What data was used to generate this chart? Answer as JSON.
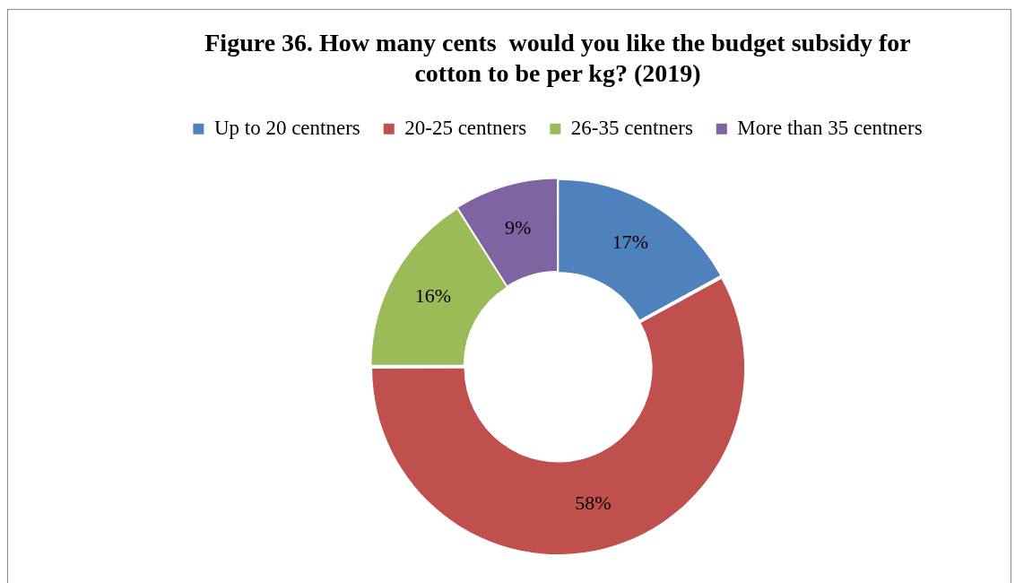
{
  "chart_data": {
    "type": "donut",
    "title": "Figure 36. How many cents  would you like the budget subsidy for cotton to be per kg? (2019)",
    "categories": [
      "Up to 20 centners",
      "20-25 centners",
      "26-35 centners",
      "More than 35 centners"
    ],
    "values": [
      17,
      58,
      16,
      9
    ],
    "colors": [
      "#4f81bd",
      "#c0504d",
      "#9bbb59",
      "#8064a2"
    ],
    "value_labels": [
      "17%",
      "58%",
      "16%",
      "9%"
    ],
    "legend": "top"
  }
}
